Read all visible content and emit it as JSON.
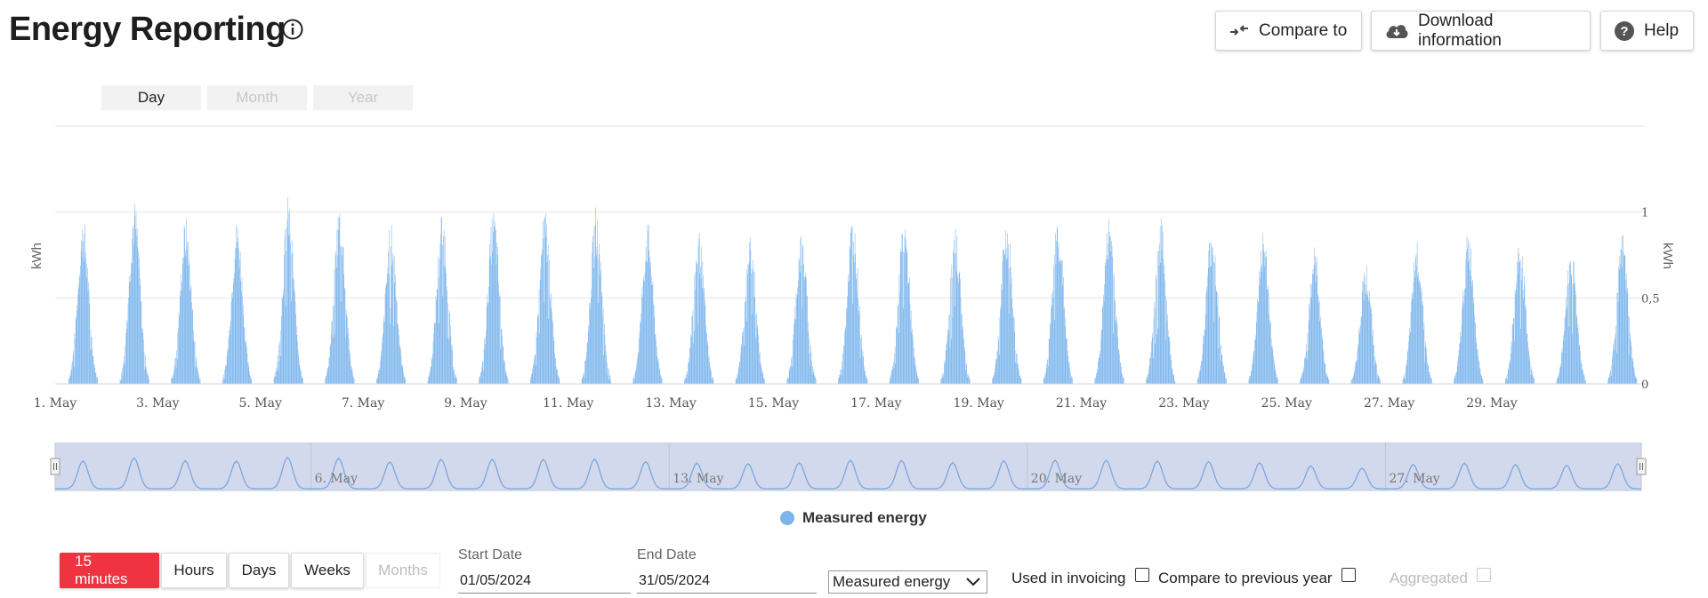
{
  "header": {
    "title": "Energy Reporting",
    "buttons": {
      "compare": "Compare to",
      "download": "Download information",
      "help": "Help"
    }
  },
  "period_tabs": [
    {
      "label": "Day",
      "active": true
    },
    {
      "label": "Month",
      "active": false
    },
    {
      "label": "Year",
      "active": false
    }
  ],
  "legend": {
    "label": "Measured energy",
    "color": "#7cb5ec"
  },
  "controls": {
    "resolutions": [
      {
        "label": "15 minutes",
        "state": "active"
      },
      {
        "label": "Hours",
        "state": "normal"
      },
      {
        "label": "Days",
        "state": "normal"
      },
      {
        "label": "Weeks",
        "state": "normal"
      },
      {
        "label": "Months",
        "state": "disabled"
      }
    ],
    "start_date": {
      "label": "Start Date",
      "value": "01/05/2024"
    },
    "end_date": {
      "label": "End Date",
      "value": "31/05/2024"
    },
    "measure_select": "Measured energy",
    "checkboxes": {
      "invoicing": "Used in invoicing",
      "compare_prev": "Compare to previous year",
      "aggregated": "Aggregated"
    }
  },
  "chart_data": {
    "type": "bar",
    "resolution": "15 minutes",
    "title": "",
    "ylabel_left": "kWh",
    "ylabel_right": "kWh",
    "ylim": [
      0,
      1.5
    ],
    "yticks": [
      "0",
      "0,5",
      "1"
    ],
    "grid": true,
    "xticks": [
      "1. May",
      "3. May",
      "5. May",
      "7. May",
      "9. May",
      "11. May",
      "13. May",
      "15. May",
      "17. May",
      "19. May",
      "21. May",
      "23. May",
      "25. May",
      "27. May",
      "29. May"
    ],
    "series": [
      {
        "name": "Measured energy",
        "x_days": [
          "1",
          "2",
          "3",
          "4",
          "5",
          "6",
          "7",
          "8",
          "9",
          "10",
          "11",
          "12",
          "13",
          "14",
          "15",
          "16",
          "17",
          "18",
          "19",
          "20",
          "21",
          "22",
          "23",
          "24",
          "25",
          "26",
          "27",
          "28",
          "29",
          "30",
          "31"
        ],
        "daily_peak_kwh": [
          0.98,
          1.08,
          0.98,
          0.97,
          1.1,
          1.07,
          0.94,
          1.03,
          1.03,
          1.03,
          1.04,
          0.95,
          0.9,
          0.88,
          0.91,
          1.0,
          0.99,
          0.92,
          0.98,
          1.0,
          1.0,
          0.97,
          0.95,
          0.91,
          0.8,
          0.72,
          0.85,
          0.9,
          0.85,
          0.82,
          0.88
        ]
      }
    ],
    "navigator": {
      "ticks": [
        "6. May",
        "13. May",
        "20. May",
        "27. May"
      ],
      "selection": "full range"
    }
  }
}
